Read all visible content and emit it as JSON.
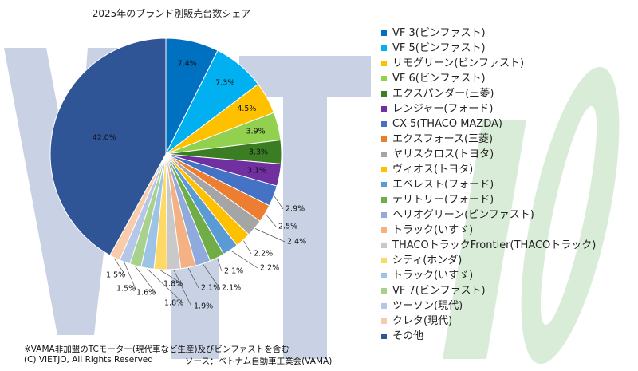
{
  "chart_data": {
    "type": "pie",
    "title": "2025年のブランド別販売台数シェア",
    "slices": [
      {
        "name": "VF 3(ビンファスト)",
        "value": 7.4,
        "label": "7.4%",
        "color": "#0070c0"
      },
      {
        "name": "VF 5(ビンファスト)",
        "value": 7.3,
        "label": "7.3%",
        "color": "#00b0f0"
      },
      {
        "name": "リモグリーン(ビンファスト)",
        "value": 4.5,
        "label": "4.5%",
        "color": "#ffc000"
      },
      {
        "name": "VF 6(ビンファスト)",
        "value": 3.9,
        "label": "3.9%",
        "color": "#92d050"
      },
      {
        "name": "エクスパンダー(三菱)",
        "value": 3.3,
        "label": "3.3%",
        "color": "#3a7d22"
      },
      {
        "name": "レンジャー(フォード)",
        "value": 3.1,
        "label": "3.1%",
        "color": "#7030a0"
      },
      {
        "name": "CX-5(THACO MAZDA)",
        "value": 2.9,
        "label": "2.9%",
        "color": "#4472c4"
      },
      {
        "name": "エクスフォース(三菱)",
        "value": 2.5,
        "label": "2.5%",
        "color": "#ed7d31"
      },
      {
        "name": "ヤリスクロス(トヨタ)",
        "value": 2.4,
        "label": "2.4%",
        "color": "#a5a5a5"
      },
      {
        "name": "ヴィオス(トヨタ)",
        "value": 2.2,
        "label": "2.2%",
        "color": "#ffc000"
      },
      {
        "name": "エベレスト(フォード)",
        "value": 2.2,
        "label": "2.2%",
        "color": "#5b9bd5"
      },
      {
        "name": "テリトリー(フォード)",
        "value": 2.1,
        "label": "2.1%",
        "color": "#70ad47"
      },
      {
        "name": "ヘリオグリーン(ビンファスト)",
        "value": 2.1,
        "label": "2.1%",
        "color": "#8faadc"
      },
      {
        "name": "トラック(いすゞ)",
        "value": 2.1,
        "label": "2.1%",
        "color": "#f4b183"
      },
      {
        "name": "THACOトラックFrontier(THACOトラック)",
        "value": 1.9,
        "label": "1.9%",
        "color": "#c9c9c9"
      },
      {
        "name": "シティ(ホンダ)",
        "value": 1.8,
        "label": "1.8%",
        "color": "#ffd966"
      },
      {
        "name": "トラック(いすゞ)",
        "value": 1.8,
        "label": "1.8%",
        "color": "#9dc3e6"
      },
      {
        "name": "VF 7(ビンファスト)",
        "value": 1.6,
        "label": "1.6%",
        "color": "#a9d18e"
      },
      {
        "name": "ツーソン(現代)",
        "value": 1.5,
        "label": "1.5%",
        "color": "#b4c7e7"
      },
      {
        "name": "クレタ(現代)",
        "value": 1.5,
        "label": "1.5%",
        "color": "#f8cbad"
      },
      {
        "name": "その他",
        "value": 42.0,
        "label": "42.0%",
        "color": "#2f5597"
      }
    ],
    "legend_position": "right"
  },
  "notes": {
    "footnote": "※VAMA非加盟のTCモーター(現代車など生産)及びビンファストを含む",
    "credit": "(C) VIETJO, All Rights Reserved",
    "source": "ソース：ベトナム自動車工業会(VAMA)"
  },
  "watermark": {
    "colors": [
      "#c9d2e4",
      "#d8ecd8"
    ]
  }
}
